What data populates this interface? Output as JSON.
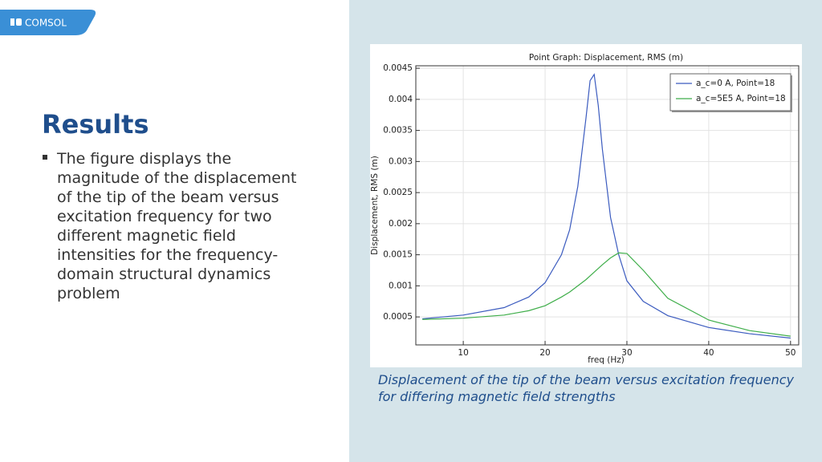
{
  "logo": "COMSOL",
  "heading": "Results",
  "bullet": "The figure displays the magnitude of the displacement of the tip of the beam versus excitation frequency for two different magnetic field intensities for the frequency-domain structural dynamics problem",
  "caption": "Displacement of the tip of the beam versus excitation frequency for differing magnetic field strengths",
  "chart_data": {
    "type": "line",
    "title": "Point Graph: Displacement, RMS (m)",
    "x_label": "freq (Hz)",
    "y_label": "Displacement, RMS (m)",
    "x": [
      5,
      10,
      15,
      18,
      20,
      22,
      23,
      24,
      25,
      25.5,
      26,
      26.5,
      27,
      28,
      29,
      30,
      32,
      35,
      40,
      45,
      50
    ],
    "series": [
      {
        "name": "a_c=0 A, Point=18",
        "color": "#3b5bbf",
        "values": [
          0.00047,
          0.00053,
          0.00065,
          0.00082,
          0.00105,
          0.0015,
          0.0019,
          0.0026,
          0.0037,
          0.0043,
          0.0044,
          0.0039,
          0.0032,
          0.0021,
          0.0015,
          0.00108,
          0.00075,
          0.00052,
          0.00033,
          0.00023,
          0.00016
        ]
      },
      {
        "name": "a_c=5E5 A, Point=18",
        "color": "#3fae4a",
        "values": [
          0.00046,
          0.00048,
          0.00053,
          0.0006,
          0.00068,
          0.00082,
          0.0009,
          0.001,
          0.0011,
          0.00116,
          0.00122,
          0.00128,
          0.00134,
          0.00145,
          0.00153,
          0.00152,
          0.00125,
          0.0008,
          0.00045,
          0.00028,
          0.00019
        ]
      }
    ],
    "xlim": [
      4.2,
      51
    ],
    "ylim": [
      5e-05,
      0.00454
    ],
    "xticks": [
      10,
      20,
      30,
      40,
      50
    ],
    "yticks": [
      0.0005,
      0.001,
      0.0015,
      0.002,
      0.0025,
      0.003,
      0.0035,
      0.004,
      0.0045
    ],
    "grid": true,
    "legend": "top-right"
  }
}
